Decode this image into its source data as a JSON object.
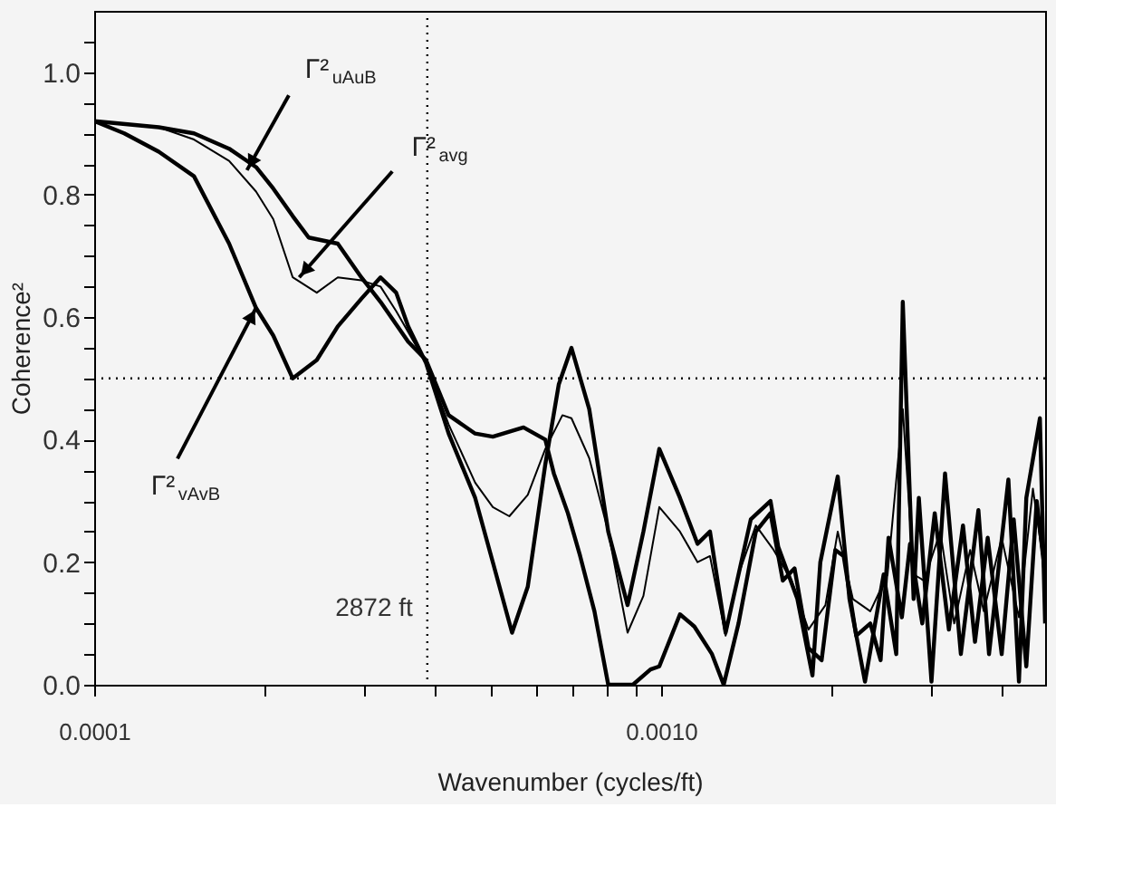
{
  "chart_data": {
    "type": "line",
    "xlabel": "Wavenumber (cycles/ft)",
    "ylabel": "Coherence²",
    "log": "x",
    "xlim": [
      0.0001,
      0.00476
    ],
    "xticks": [
      {
        "value": 0.0001,
        "label": "0.0001"
      },
      {
        "value": 0.0002,
        "label": null
      },
      {
        "value": 0.0003,
        "label": null
      },
      {
        "value": 0.0004,
        "label": null
      },
      {
        "value": 0.0005,
        "label": null
      },
      {
        "value": 0.0006,
        "label": null
      },
      {
        "value": 0.0007,
        "label": null
      },
      {
        "value": 0.0008,
        "label": null
      },
      {
        "value": 0.0009,
        "label": null
      },
      {
        "value": 0.001,
        "label": "0.0010"
      },
      {
        "value": 0.002,
        "label": null
      },
      {
        "value": 0.003,
        "label": null
      },
      {
        "value": 0.004,
        "label": null
      }
    ],
    "ylim": [
      0.0,
      1.1
    ],
    "yticks": [
      {
        "value": 0,
        "label": "0.0"
      },
      {
        "value": 0.05,
        "label": null
      },
      {
        "value": 0.1,
        "label": null
      },
      {
        "value": 0.15,
        "label": null
      },
      {
        "value": 0.2,
        "label": "0.2"
      },
      {
        "value": 0.25,
        "label": null
      },
      {
        "value": 0.3,
        "label": null
      },
      {
        "value": 0.35,
        "label": null
      },
      {
        "value": 0.4,
        "label": "0.4"
      },
      {
        "value": 0.45,
        "label": null
      },
      {
        "value": 0.5,
        "label": null
      },
      {
        "value": 0.55,
        "label": null
      },
      {
        "value": 0.6,
        "label": "0.6"
      },
      {
        "value": 0.65,
        "label": null
      },
      {
        "value": 0.7,
        "label": null
      },
      {
        "value": 0.75,
        "label": null
      },
      {
        "value": 0.8,
        "label": "0.8"
      },
      {
        "value": 0.85,
        "label": null
      },
      {
        "value": 0.9,
        "label": null
      },
      {
        "value": 0.95,
        "label": null
      },
      {
        "value": 1.0,
        "label": "1.0"
      },
      {
        "value": 1.05,
        "label": null
      }
    ],
    "grid": false,
    "line_style": "solid",
    "marker": "none",
    "series": [
      {
        "color": "#000000",
        "x": [
          0.0001,
          0.00013,
          0.00015,
          0.000173,
          0.000193,
          0.000207,
          0.000224,
          0.000239,
          0.000269,
          0.000296,
          0.00032,
          0.000358,
          0.000385,
          0.000422,
          0.00047,
          0.000505,
          0.000572,
          0.000625,
          0.000647,
          0.000685,
          0.00072,
          0.000763,
          0.000807,
          0.000892,
          0.000958,
          0.000993,
          0.00108,
          0.001145,
          0.00123,
          0.00129,
          0.00137,
          0.00147,
          0.00156,
          0.00164,
          0.00172,
          0.00182,
          0.00192,
          0.00203,
          0.0021,
          0.00221,
          0.00234,
          0.00244,
          0.00252,
          0.00266,
          0.00275,
          0.00289,
          0.00304,
          0.00322,
          0.00341,
          0.00358,
          0.00377,
          0.00399,
          0.00419,
          0.00441,
          0.0046,
          0.00476
        ],
        "values": [
          0.92,
          0.91,
          0.9,
          0.875,
          0.845,
          0.81,
          0.765,
          0.73,
          0.72,
          0.665,
          0.625,
          0.56,
          0.53,
          0.44,
          0.41,
          0.405,
          0.42,
          0.4,
          0.345,
          0.28,
          0.21,
          0.12,
          0.0,
          0.0,
          0.025,
          0.03,
          0.115,
          0.095,
          0.05,
          0.0,
          0.1,
          0.25,
          0.28,
          0.17,
          0.19,
          0.06,
          0.04,
          0.22,
          0.21,
          0.08,
          0.1,
          0.04,
          0.24,
          0.11,
          0.23,
          0.1,
          0.28,
          0.09,
          0.26,
          0.07,
          0.24,
          0.05,
          0.27,
          0.03,
          0.3,
          0.18
        ]
      },
      {
        "color": "#000000",
        "x": [
          0.0001,
          0.00013,
          0.00015,
          0.000173,
          0.000193,
          0.000207,
          0.000224,
          0.000247,
          0.000269,
          0.000296,
          0.00032,
          0.000341,
          0.000385,
          0.000422,
          0.00047,
          0.000505,
          0.00054,
          0.000582,
          0.000625,
          0.00067,
          0.000695,
          0.000747,
          0.000807,
          0.000873,
          0.000931,
          0.000993,
          0.00108,
          0.00116,
          0.00122,
          0.0013,
          0.00137,
          0.00147,
          0.00158,
          0.0017,
          0.00182,
          0.00195,
          0.00205,
          0.00218,
          0.00234,
          0.00251,
          0.00267,
          0.00279,
          0.00291,
          0.00311,
          0.00329,
          0.00351,
          0.00371,
          0.00399,
          0.00428,
          0.00453,
          0.00476
        ],
        "values": [
          0.92,
          0.91,
          0.89,
          0.855,
          0.805,
          0.76,
          0.665,
          0.64,
          0.665,
          0.66,
          0.65,
          0.61,
          0.525,
          0.425,
          0.33,
          0.29,
          0.275,
          0.31,
          0.385,
          0.44,
          0.435,
          0.37,
          0.25,
          0.085,
          0.145,
          0.29,
          0.25,
          0.2,
          0.21,
          0.08,
          0.18,
          0.26,
          0.22,
          0.17,
          0.09,
          0.13,
          0.25,
          0.14,
          0.12,
          0.18,
          0.45,
          0.18,
          0.17,
          0.25,
          0.1,
          0.22,
          0.12,
          0.24,
          0.11,
          0.32,
          0.18
        ]
      },
      {
        "color": "#000000",
        "x": [
          0.0001,
          0.000113,
          0.00013,
          0.00015,
          0.000173,
          0.000193,
          0.000207,
          0.000224,
          0.000247,
          0.000269,
          0.000296,
          0.00032,
          0.000341,
          0.000358,
          0.000385,
          0.000422,
          0.00047,
          0.000505,
          0.000546,
          0.000582,
          0.000625,
          0.00066,
          0.000695,
          0.000747,
          0.000807,
          0.000873,
          0.000931,
          0.000993,
          0.00108,
          0.00116,
          0.00122,
          0.0013,
          0.00144,
          0.00156,
          0.00161,
          0.00174,
          0.00185,
          0.00191,
          0.00205,
          0.00215,
          0.00229,
          0.00247,
          0.0026,
          0.00267,
          0.00279,
          0.00285,
          0.003,
          0.00317,
          0.00338,
          0.00363,
          0.00379,
          0.0041,
          0.00428,
          0.00441,
          0.00466,
          0.00476
        ],
        "values": [
          0.92,
          0.9,
          0.87,
          0.83,
          0.72,
          0.615,
          0.57,
          0.5,
          0.53,
          0.585,
          0.63,
          0.665,
          0.64,
          0.585,
          0.525,
          0.41,
          0.305,
          0.2,
          0.085,
          0.16,
          0.36,
          0.49,
          0.55,
          0.45,
          0.25,
          0.13,
          0.25,
          0.385,
          0.305,
          0.23,
          0.25,
          0.085,
          0.27,
          0.3,
          0.225,
          0.14,
          0.015,
          0.2,
          0.34,
          0.14,
          0.005,
          0.18,
          0.05,
          0.625,
          0.14,
          0.305,
          0.005,
          0.345,
          0.05,
          0.285,
          0.05,
          0.335,
          0.005,
          0.305,
          0.435,
          0.1
        ]
      }
    ],
    "ref_lines": [
      {
        "axis": "x",
        "value": 0.000387,
        "label": "2872 ft",
        "line_style": "dotted"
      },
      {
        "axis": "y",
        "value": 0.5,
        "line_style": "dotted"
      }
    ],
    "annotations": [
      {
        "text": "Γ²$_{uAuB}$",
        "x": 0.000186,
        "y": 0.84
      },
      {
        "text": "Γ²$_{avg}$",
        "x": 0.00023,
        "y": 0.665
      },
      {
        "text": "Γ²$_{vAvB}$",
        "x": 0.000193,
        "y": 0.615
      }
    ]
  }
}
